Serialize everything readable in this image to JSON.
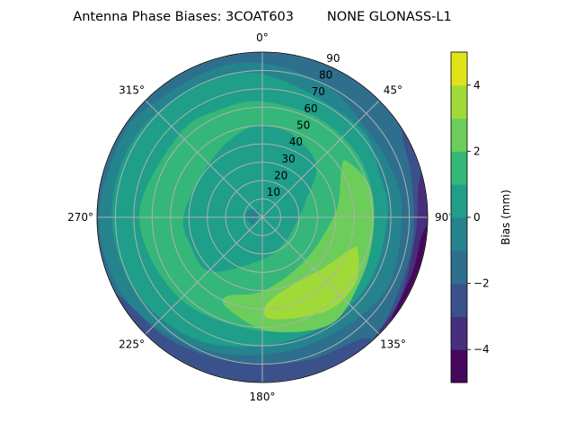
{
  "chart_data": {
    "type": "contour",
    "projection": "polar",
    "title": "Antenna Phase Biases: 3COAT603        NONE GLONASS-L1",
    "theta_zero": "north",
    "theta_direction": "clockwise",
    "theta_ticks": [
      "0°",
      "45°",
      "90°",
      "135°",
      "180°",
      "225°",
      "270°",
      "315°"
    ],
    "theta_tick_values": [
      0,
      45,
      90,
      135,
      180,
      225,
      270,
      315
    ],
    "r_ticks": [
      "10",
      "20",
      "30",
      "40",
      "50",
      "60",
      "70",
      "80",
      "90"
    ],
    "r_tick_values": [
      10,
      20,
      30,
      40,
      50,
      60,
      70,
      80,
      90
    ],
    "rlim": [
      0,
      90
    ],
    "grid": true,
    "levels": [
      -5,
      -4,
      -3,
      -2,
      -1,
      0,
      1,
      2,
      3,
      4,
      5
    ],
    "level_colors": [
      "#46085c",
      "#472f7d",
      "#3b518b",
      "#2e6f8e",
      "#25838e",
      "#1f9e89",
      "#35b779",
      "#6ccd5a",
      "#a0da39",
      "#e1e31a"
    ],
    "colorbar": {
      "label": "Bias (mm)",
      "ticks": [
        "−4",
        "−2",
        "0",
        "2",
        "4"
      ],
      "tick_values": [
        -4,
        -2,
        0,
        2,
        4
      ],
      "range": [
        -5,
        5
      ]
    },
    "regions_note_units": "points are [azimuth deg, zenith deg]",
    "regions": [
      {
        "band": [
          -2,
          -1
        ],
        "points": "disk"
      },
      {
        "band": [
          -3,
          -2
        ],
        "points": [
          [
            140,
            95
          ],
          [
            160,
            95
          ],
          [
            190,
            95
          ],
          [
            220,
            95
          ],
          [
            245,
            95
          ],
          [
            240,
            88
          ],
          [
            220,
            84
          ],
          [
            200,
            81
          ],
          [
            180,
            80
          ],
          [
            160,
            82
          ],
          [
            140,
            86
          ]
        ]
      },
      {
        "band": [
          -3,
          -2
        ],
        "points": [
          [
            55,
            95
          ],
          [
            90,
            95
          ],
          [
            130,
            95
          ],
          [
            140,
            92
          ],
          [
            125,
            86
          ],
          [
            100,
            83
          ],
          [
            75,
            84
          ],
          [
            60,
            88
          ]
        ]
      },
      {
        "band": [
          -4,
          -3
        ],
        "points": [
          [
            72,
            95
          ],
          [
            100,
            95
          ],
          [
            140,
            95
          ],
          [
            138,
            90
          ],
          [
            120,
            87
          ],
          [
            95,
            84
          ],
          [
            78,
            87
          ]
        ]
      },
      {
        "band": [
          -5,
          -4
        ],
        "points": [
          [
            92,
            95
          ],
          [
            120,
            95
          ],
          [
            138,
            95
          ],
          [
            130,
            90
          ],
          [
            110,
            87
          ],
          [
            95,
            88
          ]
        ]
      },
      {
        "band": [
          -1,
          0
        ],
        "points": [
          [
            0,
            84
          ],
          [
            25,
            80
          ],
          [
            45,
            75
          ],
          [
            70,
            75
          ],
          [
            90,
            76
          ],
          [
            120,
            78
          ],
          [
            150,
            74
          ],
          [
            180,
            75
          ],
          [
            210,
            80
          ],
          [
            240,
            87
          ],
          [
            270,
            89
          ],
          [
            300,
            88
          ],
          [
            315,
            86
          ],
          [
            340,
            85
          ]
        ]
      },
      {
        "band": [
          0,
          1
        ],
        "points": [
          [
            0,
            78
          ],
          [
            45,
            72
          ],
          [
            70,
            68
          ],
          [
            90,
            68
          ],
          [
            120,
            68
          ],
          [
            150,
            68
          ],
          [
            180,
            70
          ],
          [
            210,
            76
          ],
          [
            240,
            80
          ],
          [
            270,
            82
          ],
          [
            300,
            82
          ],
          [
            330,
            80
          ]
        ]
      },
      {
        "band": [
          1,
          2
        ],
        "points": [
          [
            0,
            63
          ],
          [
            30,
            62
          ],
          [
            60,
            62
          ],
          [
            90,
            61
          ],
          [
            120,
            62
          ],
          [
            150,
            62
          ],
          [
            180,
            62
          ],
          [
            225,
            63
          ],
          [
            270,
            67
          ],
          [
            315,
            64
          ],
          [
            340,
            63
          ]
        ]
      },
      {
        "band": [
          0,
          1
        ],
        "points": [
          [
            0,
            50
          ],
          [
            20,
            48
          ],
          [
            46,
            41
          ],
          [
            70,
            25
          ],
          [
            90,
            20
          ],
          [
            135,
            18
          ],
          [
            180,
            23
          ],
          [
            224,
            41
          ],
          [
            250,
            42
          ],
          [
            270,
            43
          ],
          [
            300,
            40
          ],
          [
            330,
            44
          ],
          [
            350,
            49
          ]
        ]
      },
      {
        "band": [
          -1,
          0
        ],
        "points": [
          [
            230,
            6
          ],
          [
            270,
            9
          ],
          [
            300,
            8
          ],
          [
            330,
            4
          ]
        ]
      },
      {
        "band": [
          2,
          3
        ],
        "points": [
          [
            56,
            55
          ],
          [
            75,
            61
          ],
          [
            101,
            61
          ],
          [
            125,
            64
          ],
          [
            148,
            69
          ],
          [
            177,
            62
          ],
          [
            201,
            53
          ],
          [
            204,
            47
          ],
          [
            179,
            40
          ],
          [
            135,
            33
          ],
          [
            86,
            40
          ],
          [
            61,
            49
          ]
        ]
      },
      {
        "band": [
          3,
          4
        ],
        "points": [
          [
            110,
            51
          ],
          [
            109,
            55
          ],
          [
            125,
            62
          ],
          [
            145,
            62
          ],
          [
            173,
            56
          ],
          [
            179,
            50
          ],
          [
            166,
            42
          ],
          [
            127,
            44
          ]
        ]
      }
    ]
  }
}
